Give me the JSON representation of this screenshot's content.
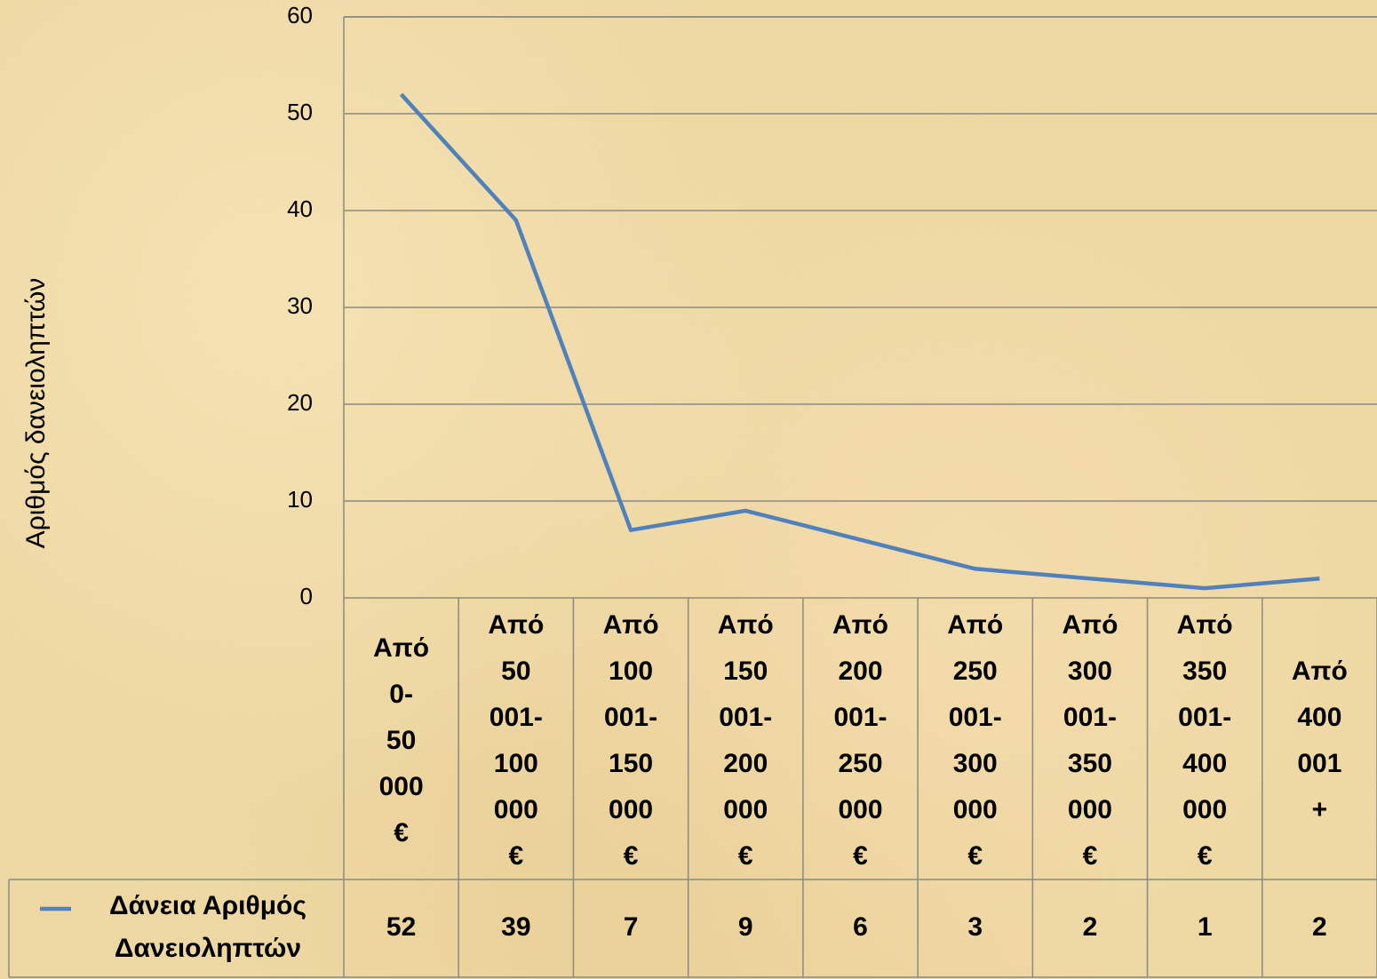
{
  "chart_data": {
    "type": "line",
    "ylabel": "Αριθμός δανειοληπτών",
    "categories": [
      "Από 0-50 000 €",
      "Από 50 001-100 000 €",
      "Από 100 001-150 000 €",
      "Από 150 001-200 000 €",
      "Από 200 001-250 000 €",
      "Από 250 001-300 000 €",
      "Από 300 001-350 000 €",
      "Από 350 001-400 000 €",
      "Από 400 001 +"
    ],
    "series": [
      {
        "name": "Δάνεια  Αριθμός Δανειοληπτών",
        "color": "#4f81bd",
        "values": [
          52,
          39,
          7,
          9,
          6,
          3,
          2,
          1,
          2
        ]
      }
    ],
    "ylim": [
      0,
      60
    ],
    "yticks": [
      0,
      10,
      20,
      30,
      40,
      50,
      60
    ],
    "grid": true
  }
}
